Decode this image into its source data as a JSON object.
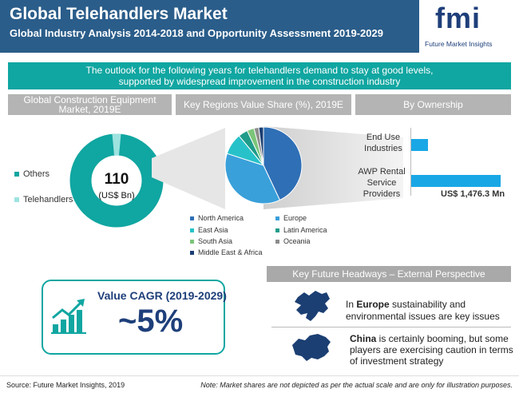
{
  "header": {
    "title": "Global Telehandlers Market",
    "subtitle": "Global Industry Analysis 2014-2018  and  Opportunity Assessment 2019-2029",
    "logo_text": "fmi",
    "logo_tagline": "Future Market Insights"
  },
  "banner": {
    "line1": "The outlook for the following years for telehandlers demand to stay at good levels,",
    "line2": "supported by widespread improvement in the construction industry"
  },
  "sections": {
    "construction_header": "Global Construction  Equipment Market, 2019E",
    "regions_header": "Key Regions Value Share (%), 2019E",
    "ownership_header": "By Ownership"
  },
  "colors": {
    "teal": "#10a6a1",
    "light_teal": "#9de3e0",
    "navy": "#2a5d8a",
    "bar_blue": "#1aa7e6",
    "north_america": "#2f6fb5",
    "europe": "#3aa0da",
    "east_asia": "#27c2c9",
    "latin_america": "#1f9c8a",
    "south_asia": "#7cc57a",
    "oceania": "#8c8c8c",
    "mea": "#1b3f73"
  },
  "chart_data": [
    {
      "type": "pie",
      "subtype": "donut",
      "title": "Global Construction  Equipment Market, 2019E",
      "center_value": "110",
      "center_unit": "(US$ Bn)",
      "categories": [
        "Others",
        "Telehandlers"
      ],
      "values": [
        97,
        3
      ],
      "legend_placement": "left"
    },
    {
      "type": "pie",
      "title": "Key Regions Value Share (%), 2019E",
      "categories": [
        "North America",
        "Europe",
        "East Asia",
        "Latin America",
        "South Asia",
        "Oceania",
        "Middle East & Africa"
      ],
      "values": [
        43,
        37,
        9,
        4,
        3,
        2,
        2
      ],
      "legend_placement": "bottom"
    },
    {
      "type": "bar",
      "orientation": "horizontal",
      "title": "By Ownership",
      "categories": [
        "End Use Industries",
        "AWP Rental Service Providers"
      ],
      "values": [
        280,
        1476.3
      ],
      "data_labels": [
        "",
        "US$ 1,476.3 Mn"
      ]
    }
  ],
  "cagr": {
    "label": "Value CAGR (2019-2029)",
    "value": "~5%",
    "icon": "growth-chart-icon"
  },
  "headways": {
    "header": "Key Future Headways – External Perspective",
    "europe": {
      "icon": "europe-map-icon",
      "bold": "Europe",
      "pre": "In ",
      "rest_line1": " sustainability and",
      "line2": "environmental issues are key issues"
    },
    "china": {
      "icon": "china-map-icon",
      "bold": "China",
      "rest_line1": " is certainly booming, but some",
      "line2": "players are exercising caution in terms",
      "line3": "of investment strategy"
    }
  },
  "footer": {
    "source": "Source: Future Market Insights, 2019",
    "note": "Note: Market shares are not depicted as per the actual scale and are only for illustration purposes."
  }
}
